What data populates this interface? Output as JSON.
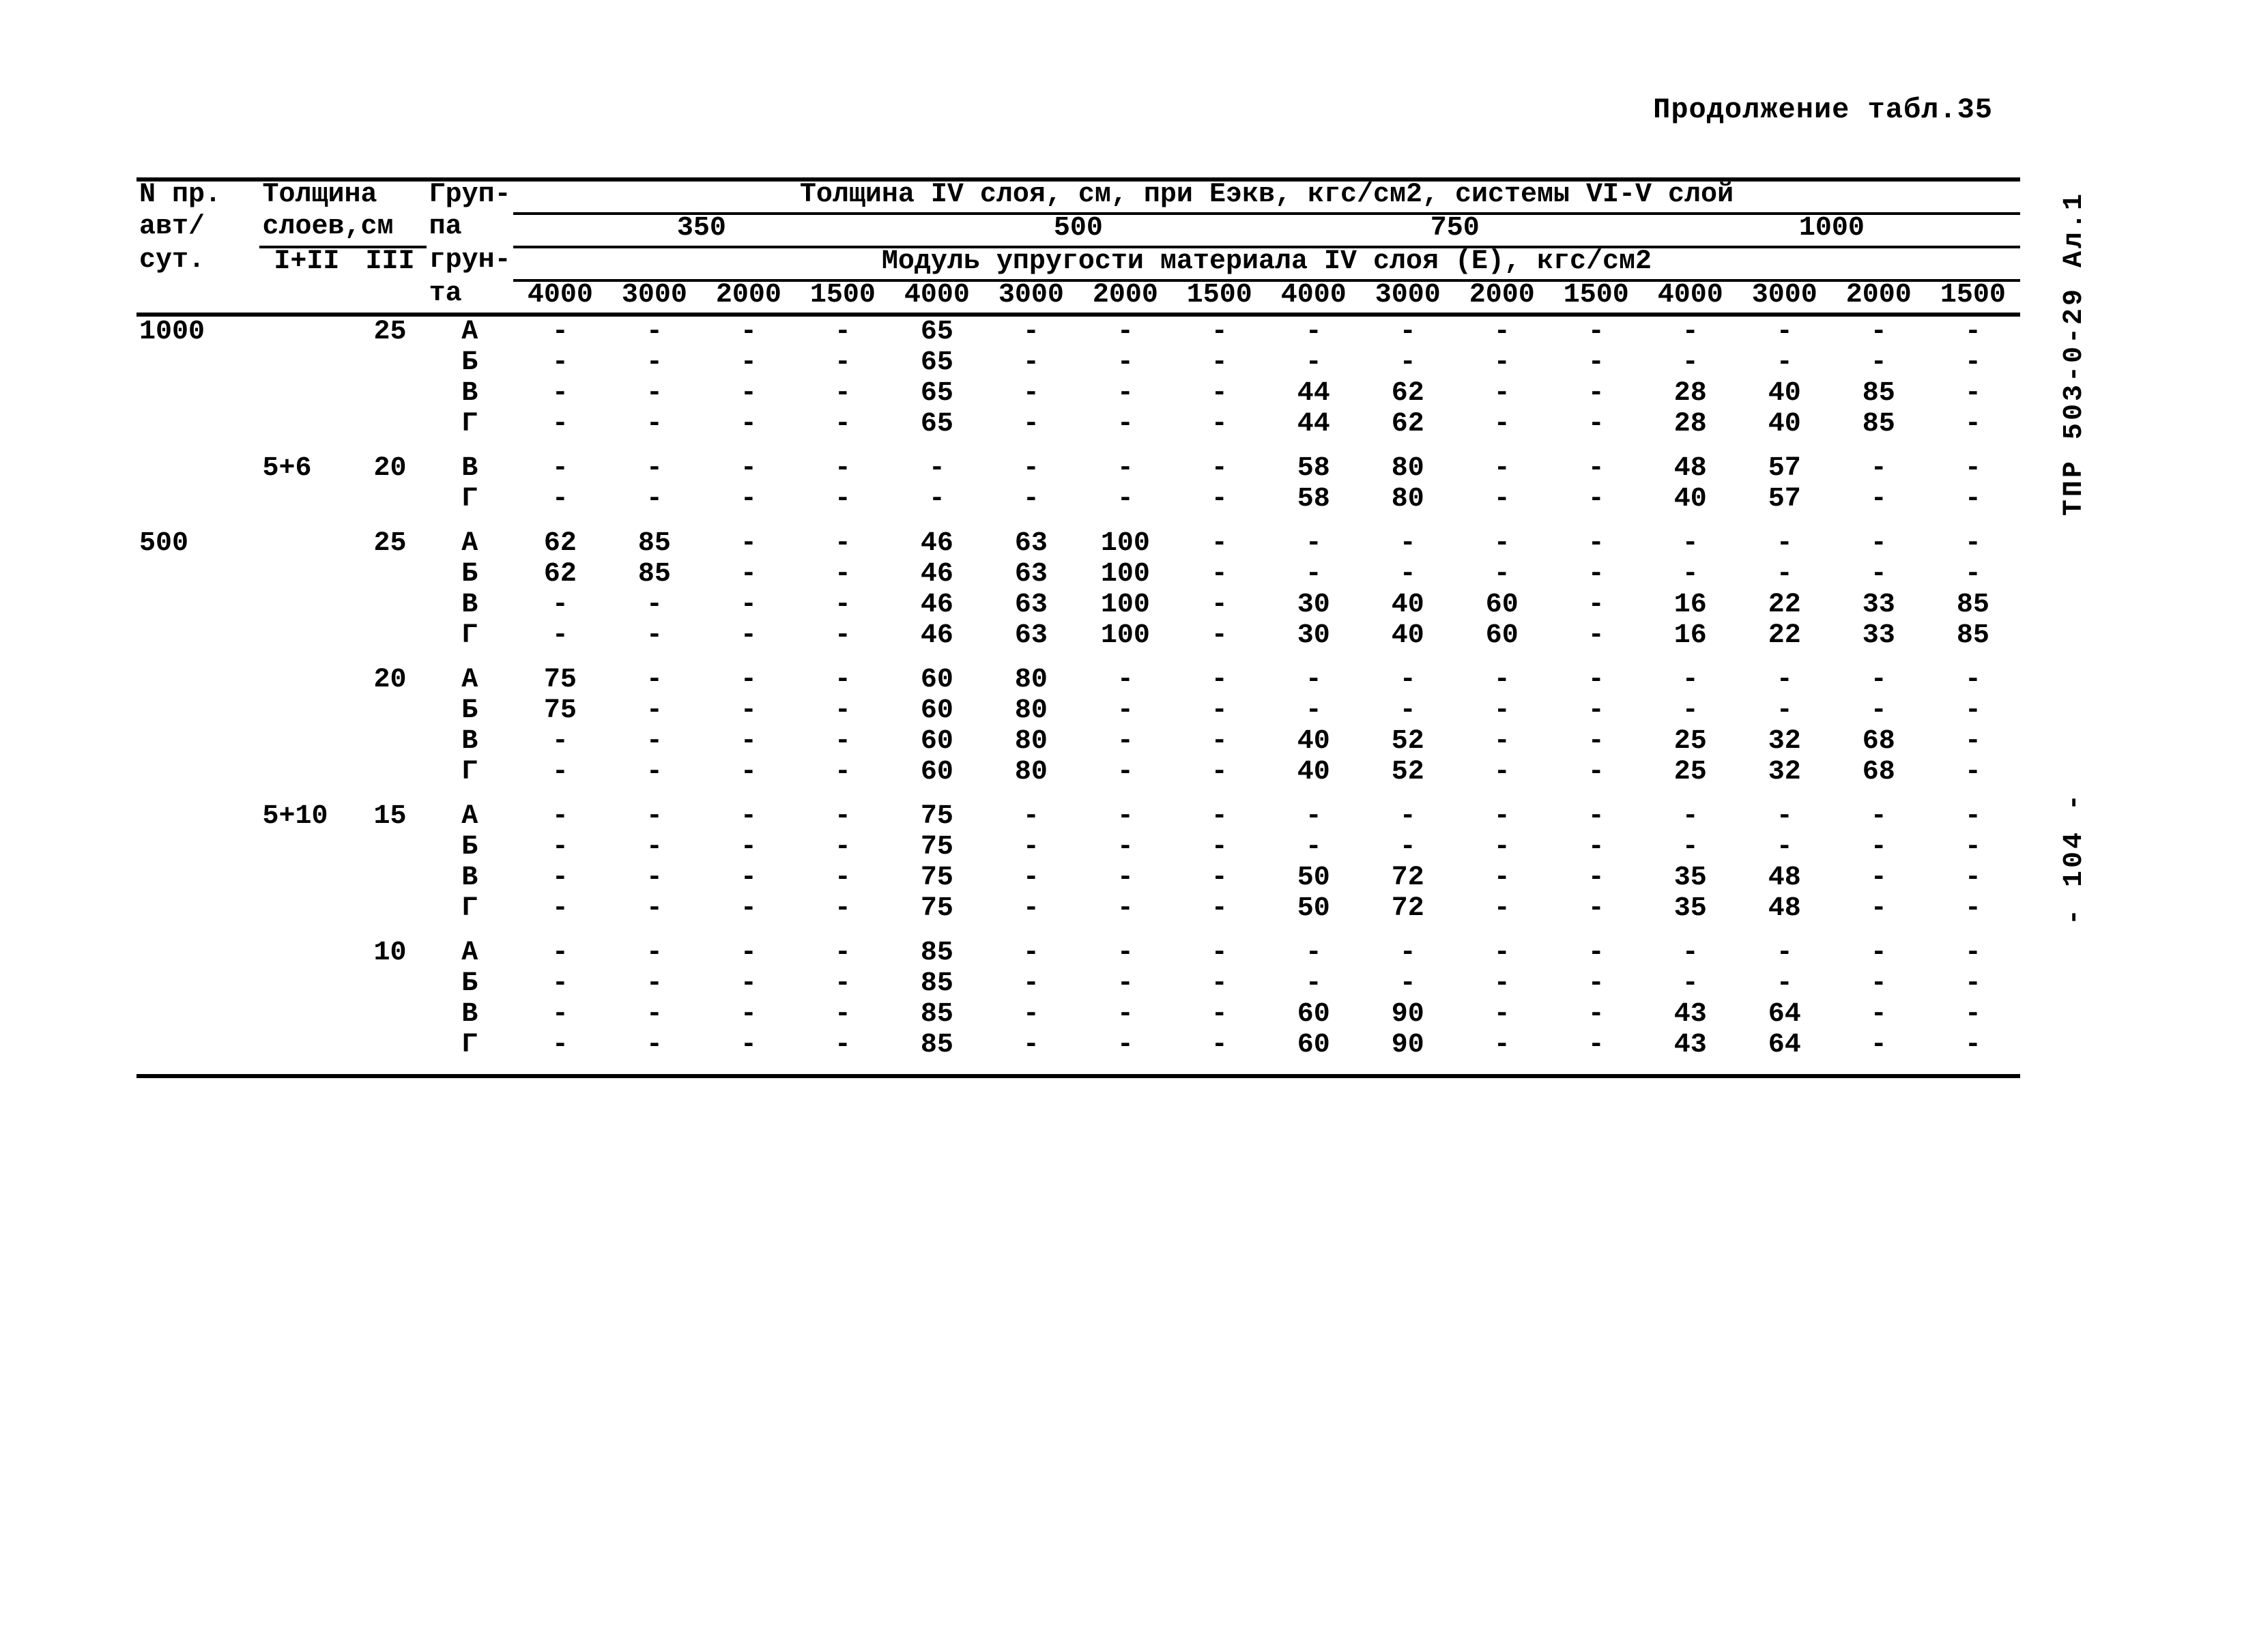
{
  "caption": "Продолжение табл.35",
  "doc_code": "ТПР 503-0-29 Ал.1",
  "page_marker": "- 104 -",
  "head": {
    "c1_line1": "N пр.",
    "c1_line2": "авт/",
    "c1_line3": "сут.",
    "c2_line1": "Толщина",
    "c2_line2": "слоев,см",
    "c2_sub1": "I+II",
    "c2_sub2": "III",
    "c3_line1": "Груп-",
    "c3_line2": "па",
    "c3_line3": "грун-",
    "c3_line4": "та",
    "span_title": "Толщина IV слоя, см, при Еэкв, кгс/см2, системы VI-V слой",
    "modul_title": "Модуль упругости материала IV слоя (E), кгс/см2",
    "eekv": [
      "350",
      "500",
      "750",
      "1000"
    ],
    "mods": [
      "4000",
      "3000",
      "2000",
      "1500"
    ]
  },
  "blocks": [
    {
      "lead": "1000",
      "th1": "",
      "th2": "25",
      "rows": [
        {
          "g": "А",
          "v": [
            "-",
            "-",
            "-",
            "-",
            "65",
            "-",
            "-",
            "-",
            "-",
            "-",
            "-",
            "-",
            "-",
            "-",
            "-",
            "-"
          ]
        },
        {
          "g": "Б",
          "v": [
            "-",
            "-",
            "-",
            "-",
            "65",
            "-",
            "-",
            "-",
            "-",
            "-",
            "-",
            "-",
            "-",
            "-",
            "-",
            "-"
          ]
        },
        {
          "g": "В",
          "v": [
            "-",
            "-",
            "-",
            "-",
            "65",
            "-",
            "-",
            "-",
            "44",
            "62",
            "-",
            "-",
            "28",
            "40",
            "85",
            "-"
          ]
        },
        {
          "g": "Г",
          "v": [
            "-",
            "-",
            "-",
            "-",
            "65",
            "-",
            "-",
            "-",
            "44",
            "62",
            "-",
            "-",
            "28",
            "40",
            "85",
            "-"
          ]
        }
      ]
    },
    {
      "lead": "",
      "th1": "5+6",
      "th2": "20",
      "rows": [
        {
          "g": "В",
          "v": [
            "-",
            "-",
            "-",
            "-",
            "-",
            "-",
            "-",
            "-",
            "58",
            "80",
            "-",
            "-",
            "48",
            "57",
            "-",
            "-"
          ]
        },
        {
          "g": "Г",
          "v": [
            "-",
            "-",
            "-",
            "-",
            "-",
            "-",
            "-",
            "-",
            "58",
            "80",
            "-",
            "-",
            "40",
            "57",
            "-",
            "-"
          ]
        }
      ]
    },
    {
      "lead": "500",
      "th1": "",
      "th2": "25",
      "rows": [
        {
          "g": "А",
          "v": [
            "62",
            "85",
            "-",
            "-",
            "46",
            "63",
            "100",
            "-",
            "-",
            "-",
            "-",
            "-",
            "-",
            "-",
            "-",
            "-"
          ]
        },
        {
          "g": "Б",
          "v": [
            "62",
            "85",
            "-",
            "-",
            "46",
            "63",
            "100",
            "-",
            "-",
            "-",
            "-",
            "-",
            "-",
            "-",
            "-",
            "-"
          ]
        },
        {
          "g": "В",
          "v": [
            "-",
            "-",
            "-",
            "-",
            "46",
            "63",
            "100",
            "-",
            "30",
            "40",
            "60",
            "-",
            "16",
            "22",
            "33",
            "85"
          ]
        },
        {
          "g": "Г",
          "v": [
            "-",
            "-",
            "-",
            "-",
            "46",
            "63",
            "100",
            "-",
            "30",
            "40",
            "60",
            "-",
            "16",
            "22",
            "33",
            "85"
          ]
        }
      ]
    },
    {
      "lead": "",
      "th1": "",
      "th2": "20",
      "rows": [
        {
          "g": "А",
          "v": [
            "75",
            "-",
            "-",
            "-",
            "60",
            "80",
            "-",
            "-",
            "-",
            "-",
            "-",
            "-",
            "-",
            "-",
            "-",
            "-"
          ]
        },
        {
          "g": "Б",
          "v": [
            "75",
            "-",
            "-",
            "-",
            "60",
            "80",
            "-",
            "-",
            "-",
            "-",
            "-",
            "-",
            "-",
            "-",
            "-",
            "-"
          ]
        },
        {
          "g": "В",
          "v": [
            "-",
            "-",
            "-",
            "-",
            "60",
            "80",
            "-",
            "-",
            "40",
            "52",
            "-",
            "-",
            "25",
            "32",
            "68",
            "-"
          ]
        },
        {
          "g": "Г",
          "v": [
            "-",
            "-",
            "-",
            "-",
            "60",
            "80",
            "-",
            "-",
            "40",
            "52",
            "-",
            "-",
            "25",
            "32",
            "68",
            "-"
          ]
        }
      ]
    },
    {
      "lead": "",
      "th1": "5+10",
      "th2": "15",
      "rows": [
        {
          "g": "А",
          "v": [
            "-",
            "-",
            "-",
            "-",
            "75",
            "-",
            "-",
            "-",
            "-",
            "-",
            "-",
            "-",
            "-",
            "-",
            "-",
            "-"
          ]
        },
        {
          "g": "Б",
          "v": [
            "-",
            "-",
            "-",
            "-",
            "75",
            "-",
            "-",
            "-",
            "-",
            "-",
            "-",
            "-",
            "-",
            "-",
            "-",
            "-"
          ]
        },
        {
          "g": "В",
          "v": [
            "-",
            "-",
            "-",
            "-",
            "75",
            "-",
            "-",
            "-",
            "50",
            "72",
            "-",
            "-",
            "35",
            "48",
            "-",
            "-"
          ]
        },
        {
          "g": "Г",
          "v": [
            "-",
            "-",
            "-",
            "-",
            "75",
            "-",
            "-",
            "-",
            "50",
            "72",
            "-",
            "-",
            "35",
            "48",
            "-",
            "-"
          ]
        }
      ]
    },
    {
      "lead": "",
      "th1": "",
      "th2": "10",
      "rows": [
        {
          "g": "А",
          "v": [
            "-",
            "-",
            "-",
            "-",
            "85",
            "-",
            "-",
            "-",
            "-",
            "-",
            "-",
            "-",
            "-",
            "-",
            "-",
            "-"
          ]
        },
        {
          "g": "Б",
          "v": [
            "-",
            "-",
            "-",
            "-",
            "85",
            "-",
            "-",
            "-",
            "-",
            "-",
            "-",
            "-",
            "-",
            "-",
            "-",
            "-"
          ]
        },
        {
          "g": "В",
          "v": [
            "-",
            "-",
            "-",
            "-",
            "85",
            "-",
            "-",
            "-",
            "60",
            "90",
            "-",
            "-",
            "43",
            "64",
            "-",
            "-"
          ]
        },
        {
          "g": "Г",
          "v": [
            "-",
            "-",
            "-",
            "-",
            "85",
            "-",
            "-",
            "-",
            "60",
            "90",
            "-",
            "-",
            "43",
            "64",
            "-",
            "-"
          ]
        }
      ]
    }
  ]
}
